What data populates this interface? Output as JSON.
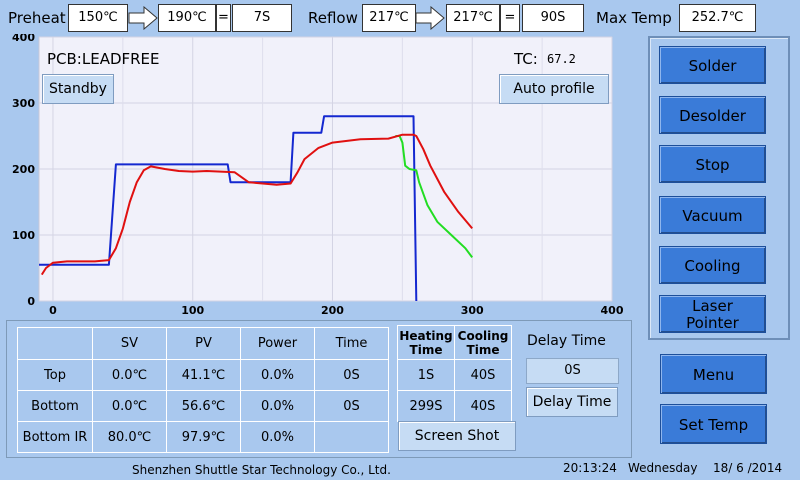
{
  "header": {
    "preheat_label": "Preheat",
    "preheat_start": "150℃",
    "preheat_end": "190℃",
    "eq1": "=",
    "preheat_time": "7S",
    "reflow_label": "Reflow",
    "reflow_start": "217℃",
    "reflow_end": "217℃",
    "eq2": "=",
    "reflow_time": "90S",
    "maxtemp_label": "Max Temp",
    "maxtemp_value": "252.7℃"
  },
  "chart_panel": {
    "pcb_label": "PCB:LEADFREE",
    "tc_label": "TC:",
    "tc_value": "67.2",
    "standby_button": "Standby",
    "autoprofile_button": "Auto profile"
  },
  "chart_data": {
    "type": "line",
    "xlim": [
      -10,
      400
    ],
    "ylim": [
      0,
      400
    ],
    "x_ticks": [
      "0",
      "100",
      "200",
      "300",
      "400"
    ],
    "y_ticks": [
      "0",
      "100",
      "200",
      "300",
      "400"
    ],
    "grid": true,
    "series": [
      {
        "color": "#1428d0",
        "points": [
          [
            -10,
            55
          ],
          [
            40,
            55
          ],
          [
            40,
            55
          ],
          [
            45,
            207
          ],
          [
            125,
            207
          ],
          [
            127,
            180
          ],
          [
            170,
            180
          ],
          [
            172,
            255
          ],
          [
            192,
            255
          ],
          [
            194,
            280
          ],
          [
            258,
            280
          ],
          [
            260,
            0
          ]
        ]
      },
      {
        "color": "#22dd22",
        "points": [
          [
            245,
            250
          ],
          [
            248,
            250
          ],
          [
            250,
            240
          ],
          [
            252,
            205
          ],
          [
            255,
            200
          ],
          [
            260,
            198
          ],
          [
            262,
            180
          ],
          [
            268,
            145
          ],
          [
            275,
            120
          ],
          [
            285,
            100
          ],
          [
            295,
            80
          ],
          [
            300,
            66
          ]
        ]
      },
      {
        "color": "#e01010",
        "points": [
          [
            -8,
            40
          ],
          [
            -5,
            50
          ],
          [
            0,
            58
          ],
          [
            10,
            60
          ],
          [
            30,
            60
          ],
          [
            40,
            62
          ],
          [
            45,
            80
          ],
          [
            50,
            110
          ],
          [
            55,
            150
          ],
          [
            60,
            180
          ],
          [
            65,
            198
          ],
          [
            70,
            204
          ],
          [
            80,
            200
          ],
          [
            90,
            197
          ],
          [
            100,
            196
          ],
          [
            110,
            197
          ],
          [
            120,
            196
          ],
          [
            130,
            195
          ],
          [
            140,
            180
          ],
          [
            150,
            178
          ],
          [
            160,
            176
          ],
          [
            170,
            178
          ],
          [
            175,
            195
          ],
          [
            180,
            215
          ],
          [
            190,
            232
          ],
          [
            200,
            240
          ],
          [
            220,
            245
          ],
          [
            240,
            246
          ],
          [
            250,
            252
          ],
          [
            258,
            252
          ],
          [
            260,
            250
          ],
          [
            265,
            230
          ],
          [
            270,
            205
          ],
          [
            275,
            185
          ],
          [
            280,
            165
          ],
          [
            290,
            135
          ],
          [
            300,
            110
          ]
        ]
      }
    ]
  },
  "buttons": {
    "solder": "Solder",
    "desolder": "Desolder",
    "stop": "Stop",
    "vacuum": "Vacuum",
    "cooling": "Cooling",
    "laser1": "Laser",
    "laser2": "Pointer",
    "menu": "Menu",
    "set_temp": "Set Temp"
  },
  "table": {
    "headers": [
      "SV",
      "PV",
      "Power",
      "Time"
    ],
    "rows": [
      {
        "name": "Top",
        "sv": "0.0℃",
        "pv": "41.1℃",
        "power": "0.0%",
        "time": "0S"
      },
      {
        "name": "Bottom",
        "sv": "0.0℃",
        "pv": "56.6℃",
        "power": "0.0%",
        "time": "0S"
      },
      {
        "name": "Bottom IR",
        "sv": "80.0℃",
        "pv": "97.9℃",
        "power": "0.0%",
        "time": ""
      }
    ],
    "heat_cool": {
      "heating_1": "Heating",
      "heating_2": "Time",
      "cooling_1": "Cooling",
      "cooling_2": "Time",
      "rows": [
        [
          "1S",
          "40S"
        ],
        [
          "299S",
          "40S"
        ]
      ]
    },
    "delay_title": "Delay Time",
    "delay_value": "0S",
    "delay_button": "Delay Time",
    "screenshot_button": "Screen Shot"
  },
  "footer": {
    "company": "Shenzhen Shuttle Star Technology Co., Ltd.",
    "time": "20:13:24",
    "day": "Wednesday",
    "date": "18/ 6 /2014"
  }
}
